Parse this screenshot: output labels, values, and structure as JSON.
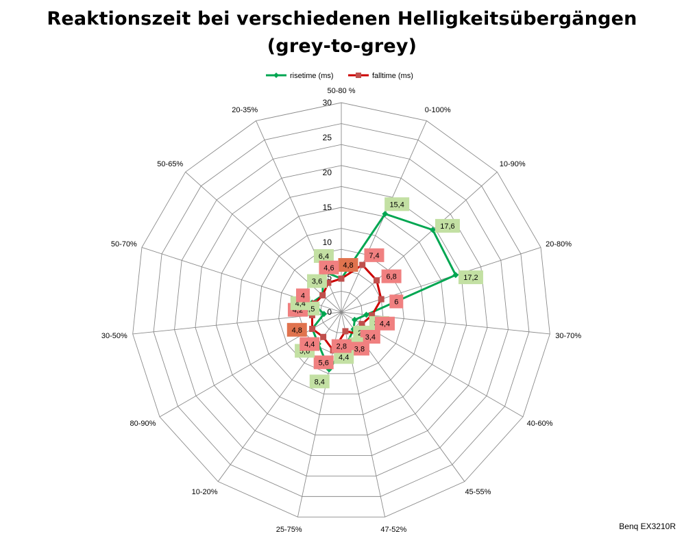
{
  "chart_data": {
    "type": "radar",
    "title": "Reaktionszeit bei verschiedenen Helligkeitsübergängen",
    "subtitle": "(grey-to-grey)",
    "footer": "Benq EX3210R",
    "categories": [
      "50-80 %",
      "0-100%",
      "10-90%",
      "20-80%",
      "30-70%",
      "40-60%",
      "45-55%",
      "47-52%",
      "25-75%",
      "10-20%",
      "80-90%",
      "30-50%",
      "50-70%",
      "50-65%",
      "20-35%"
    ],
    "radial_ticks": [
      "0",
      "5",
      "10",
      "15",
      "20",
      "25",
      "30"
    ],
    "rmax": 30,
    "rmin": 0,
    "grid_step": 3,
    "legend_position": "top",
    "series": [
      {
        "name": "risetime (ms)",
        "color": "#00a651",
        "marker": "diamond",
        "values": [
          4.8,
          15.4,
          17.6,
          17.2,
          3.6,
          2.2,
          3,
          4.4,
          8.4,
          5.6,
          4.8,
          2.5,
          4.4,
          3.6,
          6.4
        ],
        "labels": [
          "",
          "15,4",
          "17,6",
          "17,2",
          "3,6",
          "2,2",
          "3",
          "4,4",
          "8,4",
          "5,6",
          "",
          "2,5",
          "4,4",
          "3,6",
          "6,4"
        ]
      },
      {
        "name": "falltime (ms)",
        "color": "#cc0000",
        "marker": "square",
        "values": [
          4.8,
          7.4,
          6.8,
          6,
          4.4,
          3.4,
          3.8,
          2.8,
          5.6,
          4.4,
          4.8,
          4.2,
          4,
          3.6,
          4.6
        ],
        "labels": [
          "4,8",
          "7,4",
          "6,8",
          "6",
          "4,4",
          "3,4",
          "3,8",
          "2,8",
          "5,6",
          "4,4",
          "4,8",
          "4,2",
          "4",
          "",
          "4,6"
        ]
      }
    ],
    "label_colors": {
      "risetime": "#c3e0a3",
      "falltime": "#f08080",
      "overlap": "#e0734e"
    }
  }
}
